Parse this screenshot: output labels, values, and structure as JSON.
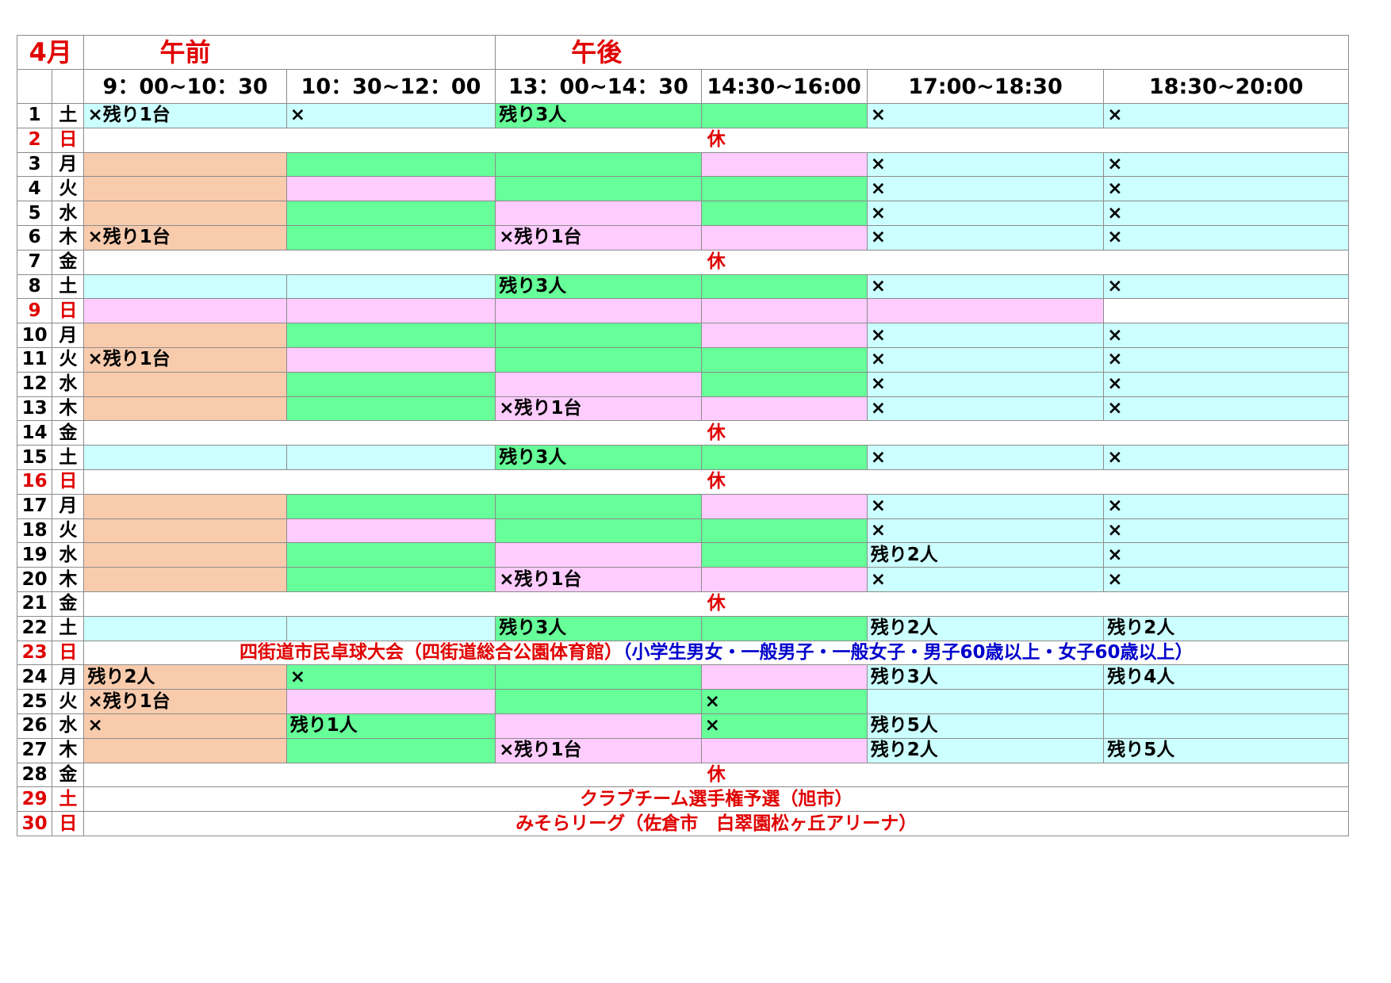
{
  "header": {
    "month": "4月",
    "am": "午前",
    "pm": "午後",
    "slots": [
      "9：00~10：30",
      "10：30~12：00",
      "13：00~14：30",
      "14:30~16:00",
      "17:00~18:30",
      "18:30~20:00"
    ]
  },
  "colors": {
    "orange": "#f8cbad",
    "green": "#66ff99",
    "pink": "#ffccff",
    "cyan": "#ccffff",
    "red": "#e00000",
    "blue": "#0000cc"
  },
  "rows": [
    {
      "d": "1",
      "w": "土",
      "red": false,
      "c": [
        [
          "b",
          "×残り1台"
        ],
        [
          "b",
          "×"
        ],
        [
          "g",
          "残り3人"
        ],
        [
          "g",
          ""
        ],
        [
          "b",
          "×"
        ],
        [
          "b",
          "×"
        ]
      ]
    },
    {
      "d": "2",
      "w": "日",
      "red": true,
      "span": "休"
    },
    {
      "d": "3",
      "w": "月",
      "red": false,
      "c": [
        [
          "o",
          ""
        ],
        [
          "g",
          ""
        ],
        [
          "g",
          ""
        ],
        [
          "p",
          ""
        ],
        [
          "b",
          "×"
        ],
        [
          "b",
          "×"
        ]
      ]
    },
    {
      "d": "4",
      "w": "火",
      "red": false,
      "c": [
        [
          "o",
          ""
        ],
        [
          "p",
          ""
        ],
        [
          "g",
          ""
        ],
        [
          "g",
          ""
        ],
        [
          "b",
          "×"
        ],
        [
          "b",
          "×"
        ]
      ]
    },
    {
      "d": "5",
      "w": "水",
      "red": false,
      "c": [
        [
          "o",
          ""
        ],
        [
          "g",
          ""
        ],
        [
          "p",
          ""
        ],
        [
          "g",
          ""
        ],
        [
          "b",
          "×"
        ],
        [
          "b",
          "×"
        ]
      ]
    },
    {
      "d": "6",
      "w": "木",
      "red": false,
      "c": [
        [
          "o",
          "×残り1台"
        ],
        [
          "g",
          ""
        ],
        [
          "p",
          "×残り1台"
        ],
        [
          "p",
          ""
        ],
        [
          "b",
          "×"
        ],
        [
          "b",
          "×"
        ]
      ]
    },
    {
      "d": "7",
      "w": "金",
      "red": false,
      "span": "休"
    },
    {
      "d": "8",
      "w": "土",
      "red": false,
      "c": [
        [
          "b",
          ""
        ],
        [
          "b",
          ""
        ],
        [
          "g",
          "残り3人"
        ],
        [
          "g",
          ""
        ],
        [
          "b",
          "×"
        ],
        [
          "b",
          "×"
        ]
      ]
    },
    {
      "d": "9",
      "w": "日",
      "red": true,
      "c": [
        [
          "p",
          ""
        ],
        [
          "p",
          ""
        ],
        [
          "p",
          ""
        ],
        [
          "p",
          ""
        ],
        [
          "p",
          ""
        ],
        [
          "w",
          ""
        ]
      ]
    },
    {
      "d": "10",
      "w": "月",
      "red": false,
      "c": [
        [
          "o",
          ""
        ],
        [
          "g",
          ""
        ],
        [
          "g",
          ""
        ],
        [
          "p",
          ""
        ],
        [
          "b",
          "×"
        ],
        [
          "b",
          "×"
        ]
      ]
    },
    {
      "d": "11",
      "w": "火",
      "red": false,
      "c": [
        [
          "o",
          "×残り1台"
        ],
        [
          "p",
          ""
        ],
        [
          "g",
          ""
        ],
        [
          "g",
          ""
        ],
        [
          "b",
          "×"
        ],
        [
          "b",
          "×"
        ]
      ]
    },
    {
      "d": "12",
      "w": "水",
      "red": false,
      "c": [
        [
          "o",
          ""
        ],
        [
          "g",
          ""
        ],
        [
          "p",
          ""
        ],
        [
          "g",
          ""
        ],
        [
          "b",
          "×"
        ],
        [
          "b",
          "×"
        ]
      ]
    },
    {
      "d": "13",
      "w": "木",
      "red": false,
      "c": [
        [
          "o",
          ""
        ],
        [
          "g",
          ""
        ],
        [
          "p",
          "×残り1台"
        ],
        [
          "p",
          ""
        ],
        [
          "b",
          "×"
        ],
        [
          "b",
          "×"
        ]
      ]
    },
    {
      "d": "14",
      "w": "金",
      "red": false,
      "span": "休"
    },
    {
      "d": "15",
      "w": "土",
      "red": false,
      "c": [
        [
          "b",
          ""
        ],
        [
          "b",
          ""
        ],
        [
          "g",
          "残り3人"
        ],
        [
          "g",
          ""
        ],
        [
          "b",
          "×"
        ],
        [
          "b",
          "×"
        ]
      ]
    },
    {
      "d": "16",
      "w": "日",
      "red": true,
      "span": "休"
    },
    {
      "d": "17",
      "w": "月",
      "red": false,
      "c": [
        [
          "o",
          ""
        ],
        [
          "g",
          ""
        ],
        [
          "g",
          ""
        ],
        [
          "p",
          ""
        ],
        [
          "b",
          "×"
        ],
        [
          "b",
          "×"
        ]
      ]
    },
    {
      "d": "18",
      "w": "火",
      "red": false,
      "c": [
        [
          "o",
          ""
        ],
        [
          "p",
          ""
        ],
        [
          "g",
          ""
        ],
        [
          "g",
          ""
        ],
        [
          "b",
          "×"
        ],
        [
          "b",
          "×"
        ]
      ]
    },
    {
      "d": "19",
      "w": "水",
      "red": false,
      "c": [
        [
          "o",
          ""
        ],
        [
          "g",
          ""
        ],
        [
          "p",
          ""
        ],
        [
          "g",
          ""
        ],
        [
          "b",
          "残り2人"
        ],
        [
          "b",
          "×"
        ]
      ]
    },
    {
      "d": "20",
      "w": "木",
      "red": false,
      "c": [
        [
          "o",
          ""
        ],
        [
          "g",
          ""
        ],
        [
          "p",
          "×残り1台"
        ],
        [
          "p",
          ""
        ],
        [
          "b",
          "×"
        ],
        [
          "b",
          "×"
        ]
      ]
    },
    {
      "d": "21",
      "w": "金",
      "red": false,
      "span": "休"
    },
    {
      "d": "22",
      "w": "土",
      "red": false,
      "c": [
        [
          "b",
          ""
        ],
        [
          "b",
          ""
        ],
        [
          "g",
          "残り3人"
        ],
        [
          "g",
          ""
        ],
        [
          "b",
          "残り2人"
        ],
        [
          "b",
          "残り2人"
        ]
      ]
    },
    {
      "d": "23",
      "w": "日",
      "red": true,
      "spanRed": "四街道市民卓球大会（四街道総合公園体育館）",
      "spanBlue": "（小学生男女・一般男子・一般女子・男子60歳以上・女子60歳以上）"
    },
    {
      "d": "24",
      "w": "月",
      "red": false,
      "c": [
        [
          "o",
          "残り2人"
        ],
        [
          "g",
          "×"
        ],
        [
          "g",
          ""
        ],
        [
          "p",
          ""
        ],
        [
          "b",
          "残り3人"
        ],
        [
          "b",
          "残り4人"
        ]
      ]
    },
    {
      "d": "25",
      "w": "火",
      "red": false,
      "c": [
        [
          "o",
          "×残り1台"
        ],
        [
          "p",
          ""
        ],
        [
          "g",
          ""
        ],
        [
          "g",
          "×"
        ],
        [
          "b",
          ""
        ],
        [
          "b",
          ""
        ]
      ]
    },
    {
      "d": "26",
      "w": "水",
      "red": false,
      "c": [
        [
          "o",
          "×"
        ],
        [
          "g",
          "残り1人"
        ],
        [
          "p",
          ""
        ],
        [
          "g",
          "×"
        ],
        [
          "b",
          "残り5人"
        ],
        [
          "b",
          ""
        ]
      ]
    },
    {
      "d": "27",
      "w": "木",
      "red": false,
      "c": [
        [
          "o",
          ""
        ],
        [
          "g",
          ""
        ],
        [
          "p",
          "×残り1台"
        ],
        [
          "p",
          ""
        ],
        [
          "b",
          "残り2人"
        ],
        [
          "b",
          "残り5人"
        ]
      ]
    },
    {
      "d": "28",
      "w": "金",
      "red": false,
      "span": "休"
    },
    {
      "d": "29",
      "w": "土",
      "red": true,
      "span": "クラブチーム選手権予選（旭市）"
    },
    {
      "d": "30",
      "w": "日",
      "red": true,
      "span": "みそらリーグ（佐倉市　白翠園松ヶ丘アリーナ）"
    }
  ]
}
